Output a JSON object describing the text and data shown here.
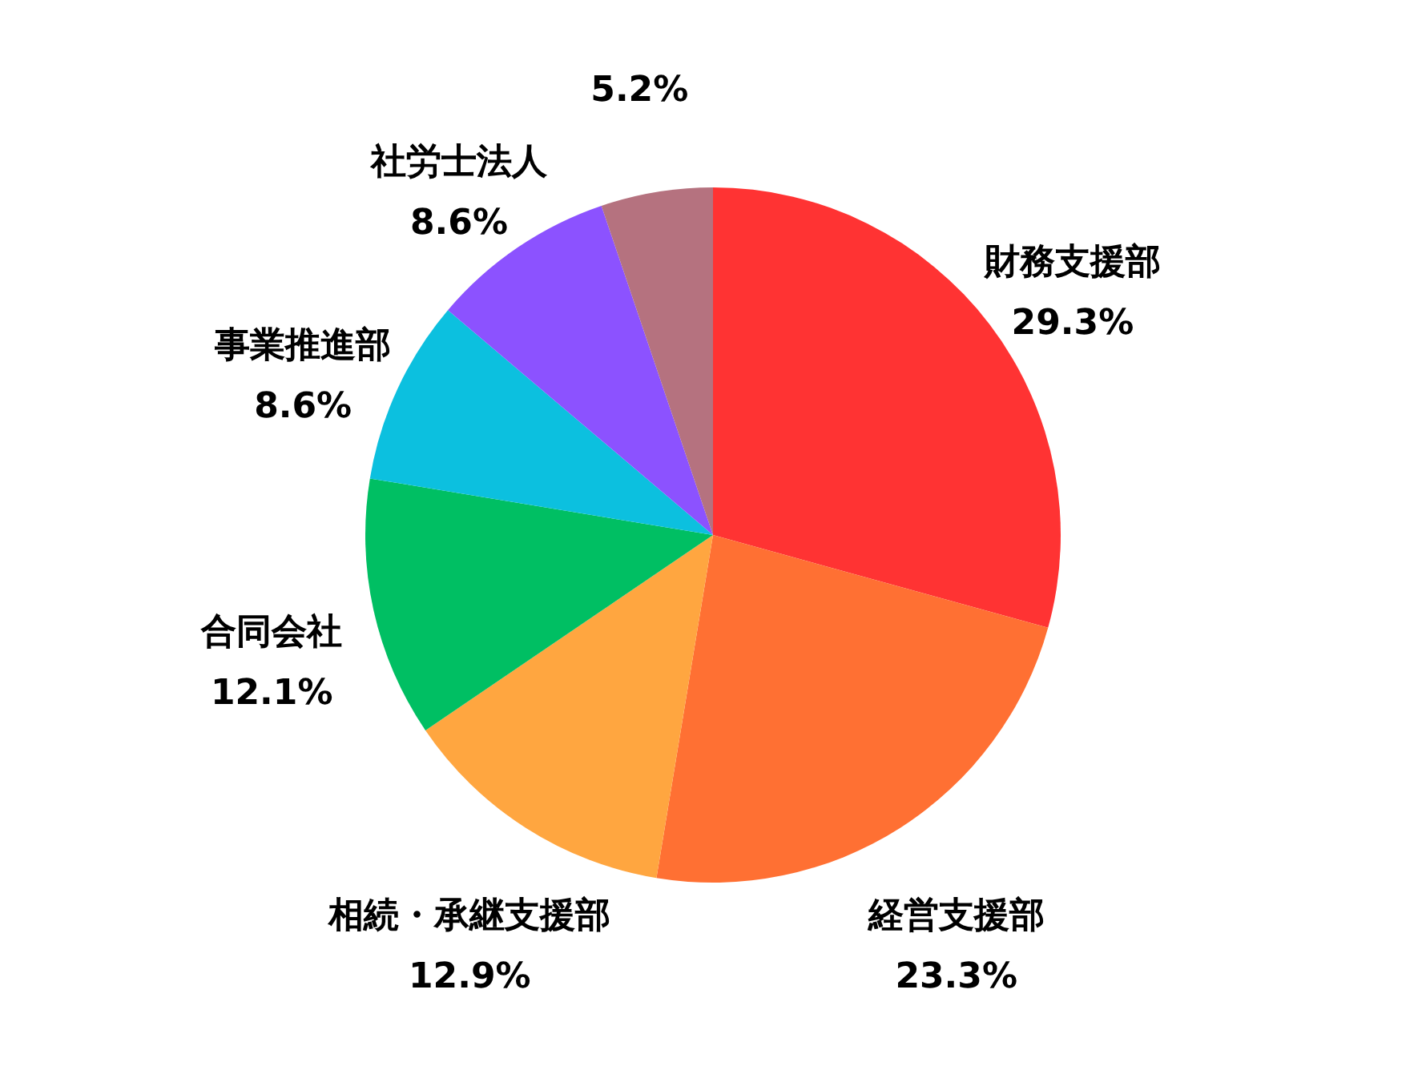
{
  "chart_data": {
    "type": "pie",
    "categories": [
      "財務支援部",
      "経営支援部",
      "相続・承継支援部",
      "合同会社",
      "事業推進部",
      "社労士法人",
      null
    ],
    "values": [
      29.3,
      23.3,
      12.9,
      12.1,
      8.6,
      8.6,
      5.2
    ],
    "value_labels": [
      "29.3%",
      "23.3%",
      "12.9%",
      "12.1%",
      "8.6%",
      "8.6%",
      "5.2%"
    ],
    "colors": [
      "#ff3333",
      "#ff7033",
      "#ffa640",
      "#00bf63",
      "#0cc0df",
      "#8c52ff",
      "#b5727f"
    ]
  }
}
